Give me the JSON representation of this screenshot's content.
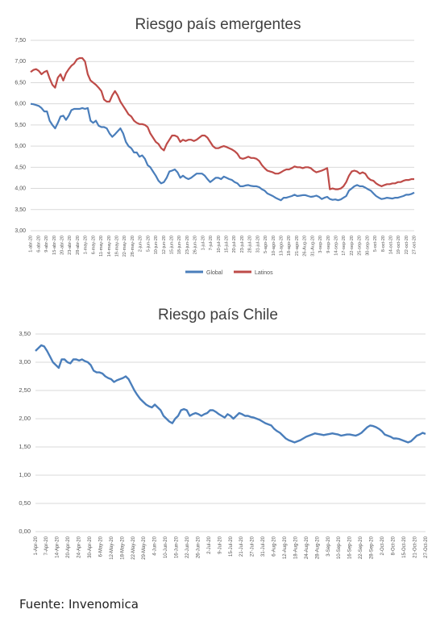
{
  "source_note": "Fuente: Invenomica",
  "colors": {
    "global": "#4a7ebb",
    "latinos": "#be4b48",
    "chile": "#4a7ebb",
    "grid": "#d9d9d9",
    "axis_text": "#555555"
  },
  "chart_data": [
    {
      "type": "line",
      "title": "Riesgo país emergentes",
      "xlabel": "",
      "ylabel": "",
      "ylim": [
        3.0,
        7.5
      ],
      "yticks": [
        "3,00",
        "3,50",
        "4,00",
        "4,50",
        "5,00",
        "5,50",
        "6,00",
        "6,50",
        "7,00",
        "7,50"
      ],
      "grid": true,
      "legend": "bottom",
      "x_tick_labels": [
        "1-abr-20",
        "6-abr-20",
        "9-abr-20",
        "15-abr-20",
        "20-abr-20",
        "23-abr-20",
        "28-abr-20",
        "1-may-20",
        "6-may-20",
        "11-may-20",
        "14-may-20",
        "19-may-20",
        "22-may-20",
        "28-may-20",
        "2-jun-20",
        "5-jun-20",
        "10-jun-20",
        "12-jun-20",
        "15-jun-20",
        "18-jun-20",
        "23-jun-20",
        "26-jun-20",
        "1-jul-20",
        "7-jul-20",
        "10-jul-20",
        "15-jul-20",
        "20-jul-20",
        "23-jul-20",
        "28-jul-20",
        "31-jul-20",
        "5-ago-20",
        "10-ago-20",
        "13-ago-20",
        "18-ago-20",
        "21-ago-20",
        "26-Aug-20",
        "31-Aug-20",
        "3-sep-20",
        "9-sep-20",
        "14-sep-20",
        "17-sep-20",
        "22-sep-20",
        "25-sep-20",
        "30-sep-20",
        "5-oct-20",
        "8-oct-20",
        "14-oct-20",
        "19-oct-20",
        "22-oct-20",
        "27-oct-20"
      ],
      "series": [
        {
          "name": "Global",
          "values": [
            6.0,
            5.99,
            5.97,
            5.95,
            5.9,
            5.82,
            5.82,
            5.6,
            5.5,
            5.42,
            5.55,
            5.7,
            5.72,
            5.62,
            5.72,
            5.85,
            5.88,
            5.88,
            5.88,
            5.9,
            5.88,
            5.9,
            5.6,
            5.55,
            5.6,
            5.48,
            5.45,
            5.45,
            5.42,
            5.3,
            5.22,
            5.28,
            5.35,
            5.42,
            5.3,
            5.1,
            5.0,
            4.95,
            4.85,
            4.85,
            4.75,
            4.78,
            4.7,
            4.55,
            4.5,
            4.4,
            4.3,
            4.18,
            4.12,
            4.15,
            4.25,
            4.4,
            4.42,
            4.45,
            4.38,
            4.25,
            4.3,
            4.25,
            4.22,
            4.25,
            4.3,
            4.35,
            4.35,
            4.35,
            4.3,
            4.22,
            4.15,
            4.2,
            4.25,
            4.25,
            4.22,
            4.28,
            4.25,
            4.22,
            4.2,
            4.15,
            4.12,
            4.05,
            4.05,
            4.07,
            4.08,
            4.06,
            4.05,
            4.05,
            4.03,
            3.98,
            3.95,
            3.88,
            3.85,
            3.82,
            3.78,
            3.75,
            3.72,
            3.78,
            3.78,
            3.8,
            3.82,
            3.85,
            3.82,
            3.83,
            3.84,
            3.84,
            3.82,
            3.8,
            3.81,
            3.83,
            3.8,
            3.75,
            3.78,
            3.8,
            3.75,
            3.73,
            3.74,
            3.72,
            3.74,
            3.78,
            3.82,
            3.95,
            4.0,
            4.05,
            4.08,
            4.05,
            4.05,
            4.02,
            3.98,
            3.95,
            3.88,
            3.82,
            3.78,
            3.75,
            3.76,
            3.78,
            3.77,
            3.76,
            3.78,
            3.78,
            3.8,
            3.82,
            3.85,
            3.85,
            3.87,
            3.9
          ]
        },
        {
          "name": "Latinos",
          "values": [
            6.75,
            6.8,
            6.82,
            6.78,
            6.7,
            6.75,
            6.78,
            6.6,
            6.45,
            6.38,
            6.62,
            6.7,
            6.55,
            6.72,
            6.82,
            6.9,
            6.95,
            7.05,
            7.08,
            7.08,
            7.0,
            6.7,
            6.55,
            6.5,
            6.45,
            6.38,
            6.3,
            6.1,
            6.05,
            6.05,
            6.2,
            6.3,
            6.2,
            6.05,
            5.95,
            5.85,
            5.75,
            5.7,
            5.6,
            5.55,
            5.52,
            5.52,
            5.5,
            5.45,
            5.3,
            5.2,
            5.1,
            5.05,
            4.95,
            4.9,
            5.05,
            5.15,
            5.25,
            5.25,
            5.22,
            5.1,
            5.15,
            5.12,
            5.15,
            5.15,
            5.12,
            5.15,
            5.2,
            5.25,
            5.25,
            5.2,
            5.1,
            5.0,
            4.95,
            4.95,
            4.98,
            5.0,
            4.98,
            4.95,
            4.92,
            4.88,
            4.82,
            4.72,
            4.7,
            4.72,
            4.75,
            4.72,
            4.72,
            4.7,
            4.65,
            4.55,
            4.48,
            4.42,
            4.4,
            4.38,
            4.35,
            4.35,
            4.38,
            4.42,
            4.45,
            4.45,
            4.48,
            4.52,
            4.5,
            4.5,
            4.48,
            4.5,
            4.5,
            4.48,
            4.42,
            4.38,
            4.4,
            4.42,
            4.45,
            4.48,
            3.98,
            4.0,
            3.98,
            3.98,
            4.0,
            4.05,
            4.15,
            4.3,
            4.4,
            4.42,
            4.4,
            4.35,
            4.38,
            4.35,
            4.25,
            4.2,
            4.18,
            4.12,
            4.08,
            4.05,
            4.08,
            4.1,
            4.1,
            4.12,
            4.12,
            4.15,
            4.15,
            4.18,
            4.2,
            4.2,
            4.22,
            4.22
          ]
        }
      ]
    },
    {
      "type": "line",
      "title": "Riesgo país Chile",
      "xlabel": "",
      "ylabel": "",
      "ylim": [
        0.0,
        3.5
      ],
      "yticks": [
        "0,00",
        "0,50",
        "1,00",
        "1,50",
        "2,00",
        "2,50",
        "3,00",
        "3,50"
      ],
      "grid": true,
      "legend": "none",
      "x_tick_labels": [
        "1-Apr-20",
        "7-Apr-20",
        "14-Apr-20",
        "20-Apr-20",
        "24-Apr-20",
        "30-Apr-20",
        "6-May-20",
        "12-May-20",
        "18-May-20",
        "22-May-20",
        "29-May-20",
        "4-Jun-20",
        "10-Jun-20",
        "16-Jun-20",
        "22-Jun-20",
        "26-Jun-20",
        "2-Jul-20",
        "9-Jul-20",
        "15-Jul-20",
        "21-Jul-20",
        "27-Jul-20",
        "31-Jul-20",
        "6-Aug-20",
        "12-Aug-20",
        "18-Aug-20",
        "24-Aug-20",
        "28-Aug-20",
        "3-Sep-20",
        "10-Sep-20",
        "16-Sep-20",
        "22-Sep-20",
        "28-Sep-20",
        "2-Oct-20",
        "8-Oct-20",
        "15-Oct-20",
        "21-Oct-20",
        "27-Oct-20"
      ],
      "series": [
        {
          "name": "Chile",
          "values": [
            3.2,
            3.25,
            3.3,
            3.28,
            3.2,
            3.1,
            3.0,
            2.95,
            2.9,
            3.05,
            3.05,
            3.0,
            2.98,
            3.05,
            3.05,
            3.03,
            3.05,
            3.02,
            3.0,
            2.95,
            2.85,
            2.82,
            2.82,
            2.8,
            2.75,
            2.72,
            2.7,
            2.65,
            2.68,
            2.7,
            2.72,
            2.75,
            2.7,
            2.6,
            2.5,
            2.42,
            2.35,
            2.3,
            2.25,
            2.22,
            2.2,
            2.25,
            2.2,
            2.15,
            2.05,
            2.0,
            1.95,
            1.92,
            2.0,
            2.05,
            2.15,
            2.17,
            2.15,
            2.05,
            2.08,
            2.1,
            2.08,
            2.05,
            2.08,
            2.1,
            2.15,
            2.15,
            2.12,
            2.08,
            2.05,
            2.02,
            2.08,
            2.05,
            2.0,
            2.05,
            2.1,
            2.08,
            2.05,
            2.05,
            2.03,
            2.02,
            2.0,
            1.98,
            1.95,
            1.92,
            1.9,
            1.88,
            1.82,
            1.78,
            1.75,
            1.7,
            1.65,
            1.62,
            1.6,
            1.58,
            1.6,
            1.62,
            1.65,
            1.68,
            1.7,
            1.72,
            1.74,
            1.73,
            1.72,
            1.71,
            1.72,
            1.73,
            1.74,
            1.73,
            1.72,
            1.7,
            1.71,
            1.72,
            1.72,
            1.71,
            1.7,
            1.72,
            1.75,
            1.8,
            1.85,
            1.88,
            1.87,
            1.85,
            1.82,
            1.78,
            1.72,
            1.7,
            1.68,
            1.65,
            1.65,
            1.64,
            1.62,
            1.6,
            1.58,
            1.6,
            1.65,
            1.7,
            1.72,
            1.75,
            1.73
          ]
        }
      ]
    }
  ]
}
